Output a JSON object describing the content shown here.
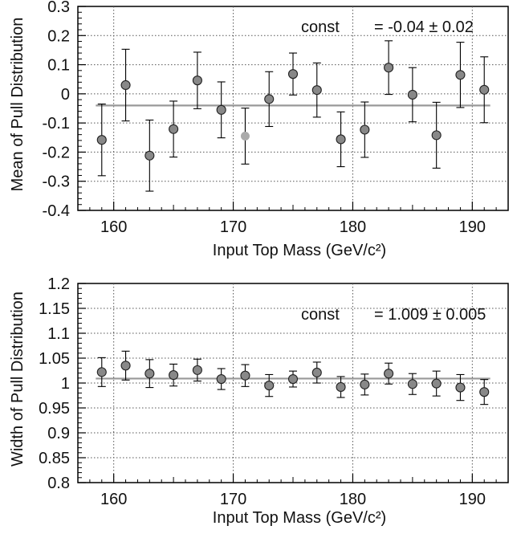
{
  "chart_data": [
    {
      "type": "scatter",
      "xlabel": "Input Top Mass (GeV/c²)",
      "ylabel": "Mean of Pull Distribution",
      "xlim": [
        157,
        193
      ],
      "ylim": [
        -0.4,
        0.3
      ],
      "xticks": [
        "160",
        "170",
        "180",
        "190"
      ],
      "yticks": [
        "0.3",
        "0.2",
        "0.1",
        "0",
        "-0.1",
        "-0.2",
        "-0.3",
        "-0.4"
      ],
      "grid": true,
      "fit": {
        "label": "const",
        "value_text": "= -0.04 ± 0.02",
        "value": -0.04,
        "line_color": "#999999"
      },
      "series": [
        {
          "x": [
            159,
            161,
            163,
            165,
            167,
            169,
            171,
            173,
            175,
            177,
            179,
            181,
            183,
            185,
            187,
            189,
            191
          ],
          "y": [
            -0.158,
            0.03,
            -0.212,
            -0.121,
            0.046,
            -0.055,
            -0.145,
            -0.018,
            0.068,
            0.013,
            -0.156,
            -0.123,
            0.09,
            -0.003,
            -0.142,
            0.065,
            0.014
          ],
          "err": [
            0.123,
            0.123,
            0.122,
            0.096,
            0.097,
            0.096,
            0.096,
            0.094,
            0.072,
            0.093,
            0.094,
            0.095,
            0.092,
            0.093,
            0.113,
            0.112,
            0.113
          ],
          "marker_colors": [
            "#888888",
            "#888888",
            "#888888",
            "#888888",
            "#888888",
            "#888888",
            "#aaaaaa",
            "#888888",
            "#888888",
            "#888888",
            "#888888",
            "#888888",
            "#888888",
            "#888888",
            "#888888",
            "#888888",
            "#888888"
          ]
        }
      ]
    },
    {
      "type": "scatter",
      "xlabel": "Input Top Mass (GeV/c²)",
      "ylabel": "Width of Pull Distribution",
      "xlim": [
        157,
        193
      ],
      "ylim": [
        0.8,
        1.2
      ],
      "xticks": [
        "160",
        "170",
        "180",
        "190"
      ],
      "yticks": [
        "1.2",
        "1.15",
        "1.1",
        "1.05",
        "1",
        "0.95",
        "0.9",
        "0.85",
        "0.8"
      ],
      "grid": true,
      "fit": {
        "label": "const",
        "value_text": "= 1.009 ± 0.005",
        "value": 1.009,
        "line_color": "#999999"
      },
      "series": [
        {
          "x": [
            159,
            161,
            163,
            165,
            167,
            169,
            171,
            173,
            175,
            177,
            179,
            181,
            183,
            185,
            187,
            189,
            191
          ],
          "y": [
            1.022,
            1.035,
            1.019,
            1.016,
            1.026,
            1.008,
            1.015,
            0.995,
            1.008,
            1.021,
            0.992,
            0.997,
            1.019,
            0.998,
            0.999,
            0.991,
            0.982
          ],
          "err": [
            0.029,
            0.029,
            0.028,
            0.022,
            0.022,
            0.021,
            0.022,
            0.022,
            0.016,
            0.021,
            0.021,
            0.021,
            0.021,
            0.021,
            0.025,
            0.026,
            0.025
          ],
          "marker_colors": [
            "#888888",
            "#888888",
            "#888888",
            "#888888",
            "#888888",
            "#888888",
            "#888888",
            "#888888",
            "#888888",
            "#888888",
            "#888888",
            "#888888",
            "#888888",
            "#888888",
            "#888888",
            "#888888",
            "#888888"
          ]
        }
      ]
    }
  ]
}
